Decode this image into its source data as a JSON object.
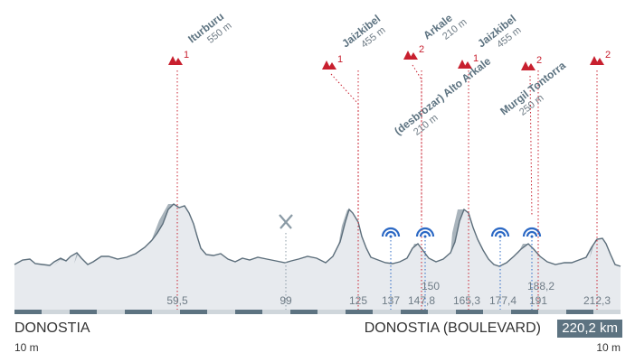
{
  "colors": {
    "profile_fill": "#e7eaee",
    "profile_line": "#5c6e7b",
    "climb_shade": "#a9b4bc",
    "climb_red": "#c8202f",
    "sprint_blue": "#2b68c4",
    "text_dark": "#333333",
    "text_gray": "#6f7c86",
    "badge_bg": "#5d7381"
  },
  "route": {
    "start_name": "DONOSTIA",
    "start_elevation": "10 m",
    "end_name": "DONOSTIA (BOULEVARD)",
    "end_elevation": "10 m",
    "total_distance": "220,2 km"
  },
  "km_markers": [
    {
      "label": "59,5",
      "type": "climb",
      "icon": "mountain-icon"
    },
    {
      "label": "99",
      "type": "feed",
      "icon": "fork-knife-icon"
    },
    {
      "label": "125",
      "type": "climb",
      "icon": "mountain-icon"
    },
    {
      "label": "137",
      "type": "sprint",
      "icon": "sprint-icon"
    },
    {
      "label": "147,8",
      "type": "climb",
      "icon": "mountain-icon"
    },
    {
      "label": "150",
      "type": "sprint",
      "icon": "sprint-icon"
    },
    {
      "label": "165,3",
      "type": "climb",
      "icon": "mountain-icon"
    },
    {
      "label": "177,4",
      "type": "sprint",
      "icon": "sprint-icon"
    },
    {
      "label": "188,2",
      "type": "sprint",
      "icon": "sprint-icon"
    },
    {
      "label": "191",
      "type": "climb",
      "icon": "mountain-icon"
    },
    {
      "label": "212,3",
      "type": "climb",
      "icon": "mountain-icon"
    }
  ],
  "climbs": [
    {
      "name": "Iturburu",
      "elevation": "550 m",
      "category": "1"
    },
    {
      "name": "Jaizkibel",
      "elevation": "455 m",
      "category": "1"
    },
    {
      "name": "Arkale",
      "elevation": "210 m",
      "category": "2"
    },
    {
      "name": "Jaizkibel",
      "elevation": "455 m",
      "category": "1"
    },
    {
      "name": "(desbrozar) Alto Arkale",
      "elevation": "210 m",
      "category": "2"
    },
    {
      "name": "Murgil Tontorra",
      "elevation": "250 m",
      "category": "2"
    }
  ]
}
